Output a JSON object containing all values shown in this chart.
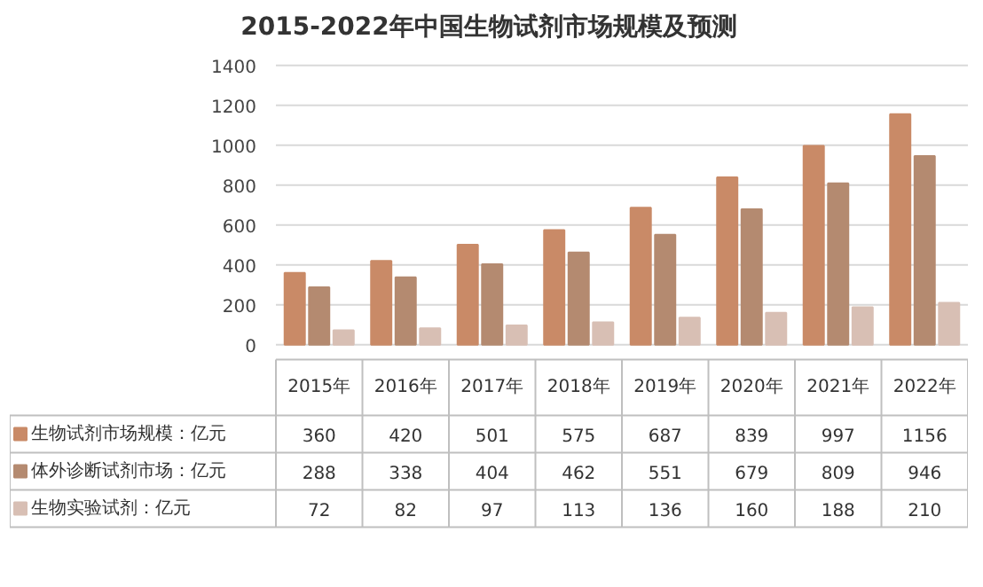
{
  "chart_data": {
    "type": "bar",
    "title": "2015-2022年中国生物试剂市场规模及预测",
    "categories": [
      "2015年",
      "2016年",
      "2017年",
      "2018年",
      "2019年",
      "2020年",
      "2021年",
      "2022年"
    ],
    "series": [
      {
        "name": "生物试剂市场规模：亿元",
        "color": "#c98a67",
        "values": [
          360,
          420,
          501,
          575,
          687,
          839,
          997,
          1156
        ]
      },
      {
        "name": "体外诊断试剂市场：亿元",
        "color": "#b48a70",
        "values": [
          288,
          338,
          404,
          462,
          551,
          679,
          809,
          946
        ]
      },
      {
        "name": "生物实验试剂：亿元",
        "color": "#d8bfb4",
        "values": [
          72,
          82,
          97,
          113,
          136,
          160,
          188,
          210
        ]
      }
    ],
    "ylim": [
      0,
      1400
    ],
    "yticks": [
      0,
      200,
      400,
      600,
      800,
      1000,
      1200,
      1400
    ],
    "grid": "y",
    "legend": "bottom",
    "data_labels": true
  }
}
